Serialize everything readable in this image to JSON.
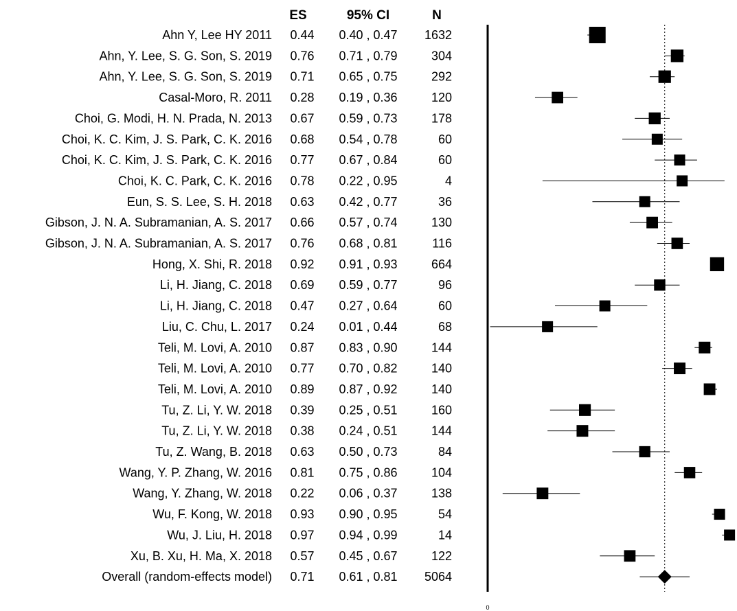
{
  "chart_data": {
    "type": "forest",
    "columns": {
      "es": "ES",
      "ci": "95% CI",
      "n": "N"
    },
    "x_axis_tick_label": "0",
    "xlim": [
      0,
      1
    ],
    "reference_line": 0.71,
    "studies": [
      {
        "label": "Ahn Y, Lee HY 2011",
        "es": 0.44,
        "lo": 0.4,
        "hi": 0.47,
        "n": 1632,
        "es_text": "0.44",
        "ci_text": "0.40 , 0.47",
        "n_text": "1632"
      },
      {
        "label": "Ahn, Y. Lee, S. G. Son, S. 2019",
        "es": 0.76,
        "lo": 0.71,
        "hi": 0.79,
        "n": 304,
        "es_text": "0.76",
        "ci_text": "0.71 , 0.79",
        "n_text": "304"
      },
      {
        "label": "Ahn, Y. Lee, S. G. Son, S. 2019",
        "es": 0.71,
        "lo": 0.65,
        "hi": 0.75,
        "n": 292,
        "es_text": "0.71",
        "ci_text": "0.65 , 0.75",
        "n_text": "292"
      },
      {
        "label": "Casal-Moro, R. 2011",
        "es": 0.28,
        "lo": 0.19,
        "hi": 0.36,
        "n": 120,
        "es_text": "0.28",
        "ci_text": "0.19 , 0.36",
        "n_text": "120"
      },
      {
        "label": "Choi, G. Modi, H. N. Prada, N. 2013",
        "es": 0.67,
        "lo": 0.59,
        "hi": 0.73,
        "n": 178,
        "es_text": "0.67",
        "ci_text": "0.59 , 0.73",
        "n_text": "178"
      },
      {
        "label": "Choi, K. C. Kim, J. S. Park, C. K. 2016",
        "es": 0.68,
        "lo": 0.54,
        "hi": 0.78,
        "n": 60,
        "es_text": "0.68",
        "ci_text": "0.54 , 0.78",
        "n_text": "60"
      },
      {
        "label": "Choi, K. C. Kim, J. S. Park, C. K. 2016",
        "es": 0.77,
        "lo": 0.67,
        "hi": 0.84,
        "n": 60,
        "es_text": "0.77",
        "ci_text": "0.67 , 0.84",
        "n_text": "60"
      },
      {
        "label": "Choi, K. C. Park, C. K. 2016",
        "es": 0.78,
        "lo": 0.22,
        "hi": 0.95,
        "n": 4,
        "es_text": "0.78",
        "ci_text": "0.22 , 0.95",
        "n_text": "4"
      },
      {
        "label": "Eun, S. S. Lee, S. H. 2018",
        "es": 0.63,
        "lo": 0.42,
        "hi": 0.77,
        "n": 36,
        "es_text": "0.63",
        "ci_text": "0.42 , 0.77",
        "n_text": "36"
      },
      {
        "label": "Gibson, J. N. A. Subramanian, A. S. 2017",
        "es": 0.66,
        "lo": 0.57,
        "hi": 0.74,
        "n": 130,
        "es_text": "0.66",
        "ci_text": "0.57 , 0.74",
        "n_text": "130"
      },
      {
        "label": "Gibson, J. N. A. Subramanian, A. S. 2017",
        "es": 0.76,
        "lo": 0.68,
        "hi": 0.81,
        "n": 116,
        "es_text": "0.76",
        "ci_text": "0.68 , 0.81",
        "n_text": "116"
      },
      {
        "label": "Hong, X. Shi, R. 2018",
        "es": 0.92,
        "lo": 0.91,
        "hi": 0.93,
        "n": 664,
        "es_text": "0.92",
        "ci_text": "0.91 , 0.93",
        "n_text": "664"
      },
      {
        "label": "Li, H. Jiang, C. 2018",
        "es": 0.69,
        "lo": 0.59,
        "hi": 0.77,
        "n": 96,
        "es_text": "0.69",
        "ci_text": "0.59 , 0.77",
        "n_text": "96"
      },
      {
        "label": "Li, H. Jiang, C. 2018",
        "es": 0.47,
        "lo": 0.27,
        "hi": 0.64,
        "n": 60,
        "es_text": "0.47",
        "ci_text": "0.27 , 0.64",
        "n_text": "60"
      },
      {
        "label": "Liu, C. Chu, L. 2017",
        "es": 0.24,
        "lo": 0.01,
        "hi": 0.44,
        "n": 68,
        "es_text": "0.24",
        "ci_text": "0.01 , 0.44",
        "n_text": "68"
      },
      {
        "label": "Teli, M. Lovi, A.  2010",
        "es": 0.87,
        "lo": 0.83,
        "hi": 0.9,
        "n": 144,
        "es_text": "0.87",
        "ci_text": "0.83 , 0.90",
        "n_text": "144"
      },
      {
        "label": "Teli, M. Lovi, A.  2010",
        "es": 0.77,
        "lo": 0.7,
        "hi": 0.82,
        "n": 140,
        "es_text": "0.77",
        "ci_text": "0.70 , 0.82",
        "n_text": "140"
      },
      {
        "label": "Teli, M. Lovi, A. 2010",
        "es": 0.89,
        "lo": 0.87,
        "hi": 0.92,
        "n": 140,
        "es_text": "0.89",
        "ci_text": "0.87 , 0.92",
        "n_text": "140"
      },
      {
        "label": "Tu, Z. Li, Y. W. 2018",
        "es": 0.39,
        "lo": 0.25,
        "hi": 0.51,
        "n": 160,
        "es_text": "0.39",
        "ci_text": "0.25 , 0.51",
        "n_text": "160"
      },
      {
        "label": "Tu, Z. Li, Y. W. 2018",
        "es": 0.38,
        "lo": 0.24,
        "hi": 0.51,
        "n": 144,
        "es_text": "0.38",
        "ci_text": "0.24 , 0.51",
        "n_text": "144"
      },
      {
        "label": "Tu, Z. Wang, B. 2018",
        "es": 0.63,
        "lo": 0.5,
        "hi": 0.73,
        "n": 84,
        "es_text": "0.63",
        "ci_text": "0.50 , 0.73",
        "n_text": "84"
      },
      {
        "label": "Wang, Y. P. Zhang, W. 2016",
        "es": 0.81,
        "lo": 0.75,
        "hi": 0.86,
        "n": 104,
        "es_text": "0.81",
        "ci_text": "0.75 , 0.86",
        "n_text": "104"
      },
      {
        "label": "Wang, Y. Zhang, W. 2018",
        "es": 0.22,
        "lo": 0.06,
        "hi": 0.37,
        "n": 138,
        "es_text": "0.22",
        "ci_text": "0.06 , 0.37",
        "n_text": "138"
      },
      {
        "label": "Wu, F. Kong, W. 2018",
        "es": 0.93,
        "lo": 0.9,
        "hi": 0.95,
        "n": 54,
        "es_text": "0.93",
        "ci_text": "0.90 , 0.95",
        "n_text": "54"
      },
      {
        "label": "Wu, J. Liu, H. 2018",
        "es": 0.97,
        "lo": 0.94,
        "hi": 0.99,
        "n": 14,
        "es_text": "0.97",
        "ci_text": "0.94 , 0.99",
        "n_text": "14"
      },
      {
        "label": "Xu, B. Xu, H. Ma, X. 2018",
        "es": 0.57,
        "lo": 0.45,
        "hi": 0.67,
        "n": 122,
        "es_text": "0.57",
        "ci_text": "0.45 , 0.67",
        "n_text": "122"
      }
    ],
    "overall": {
      "label": "Overall (random-effects model)",
      "es": 0.71,
      "lo": 0.61,
      "hi": 0.81,
      "n": 5064,
      "es_text": "0.71",
      "ci_text": "0.61 , 0.81",
      "n_text": "5064"
    }
  }
}
